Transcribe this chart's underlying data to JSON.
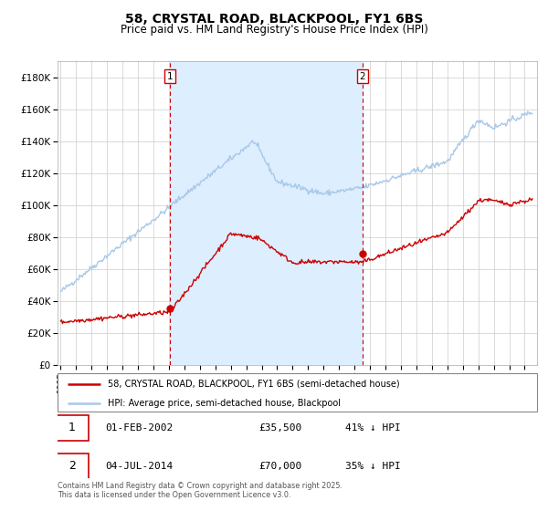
{
  "title": "58, CRYSTAL ROAD, BLACKPOOL, FY1 6BS",
  "subtitle": "Price paid vs. HM Land Registry's House Price Index (HPI)",
  "title_fontsize": 10,
  "subtitle_fontsize": 8.5,
  "ylim": [
    0,
    190000
  ],
  "yticks": [
    0,
    20000,
    40000,
    60000,
    80000,
    100000,
    120000,
    140000,
    160000,
    180000
  ],
  "sale1_date_num": 2002.08,
  "sale1_price": 35500,
  "sale1_label": "1",
  "sale1_date_str": "01-FEB-2002",
  "sale1_pct": "41% ↓ HPI",
  "sale2_date_num": 2014.5,
  "sale2_price": 70000,
  "sale2_label": "2",
  "sale2_date_str": "04-JUL-2014",
  "sale2_pct": "35% ↓ HPI",
  "hpi_color": "#a8c8e8",
  "property_color": "#cc0000",
  "shade_color": "#ddeeff",
  "plot_bg": "#ffffff",
  "grid_color": "#cccccc",
  "legend_label_property": "58, CRYSTAL ROAD, BLACKPOOL, FY1 6BS (semi-detached house)",
  "legend_label_hpi": "HPI: Average price, semi-detached house, Blackpool",
  "footer": "Contains HM Land Registry data © Crown copyright and database right 2025.\nThis data is licensed under the Open Government Licence v3.0.",
  "xmin": 1994.8,
  "xmax": 2025.8
}
